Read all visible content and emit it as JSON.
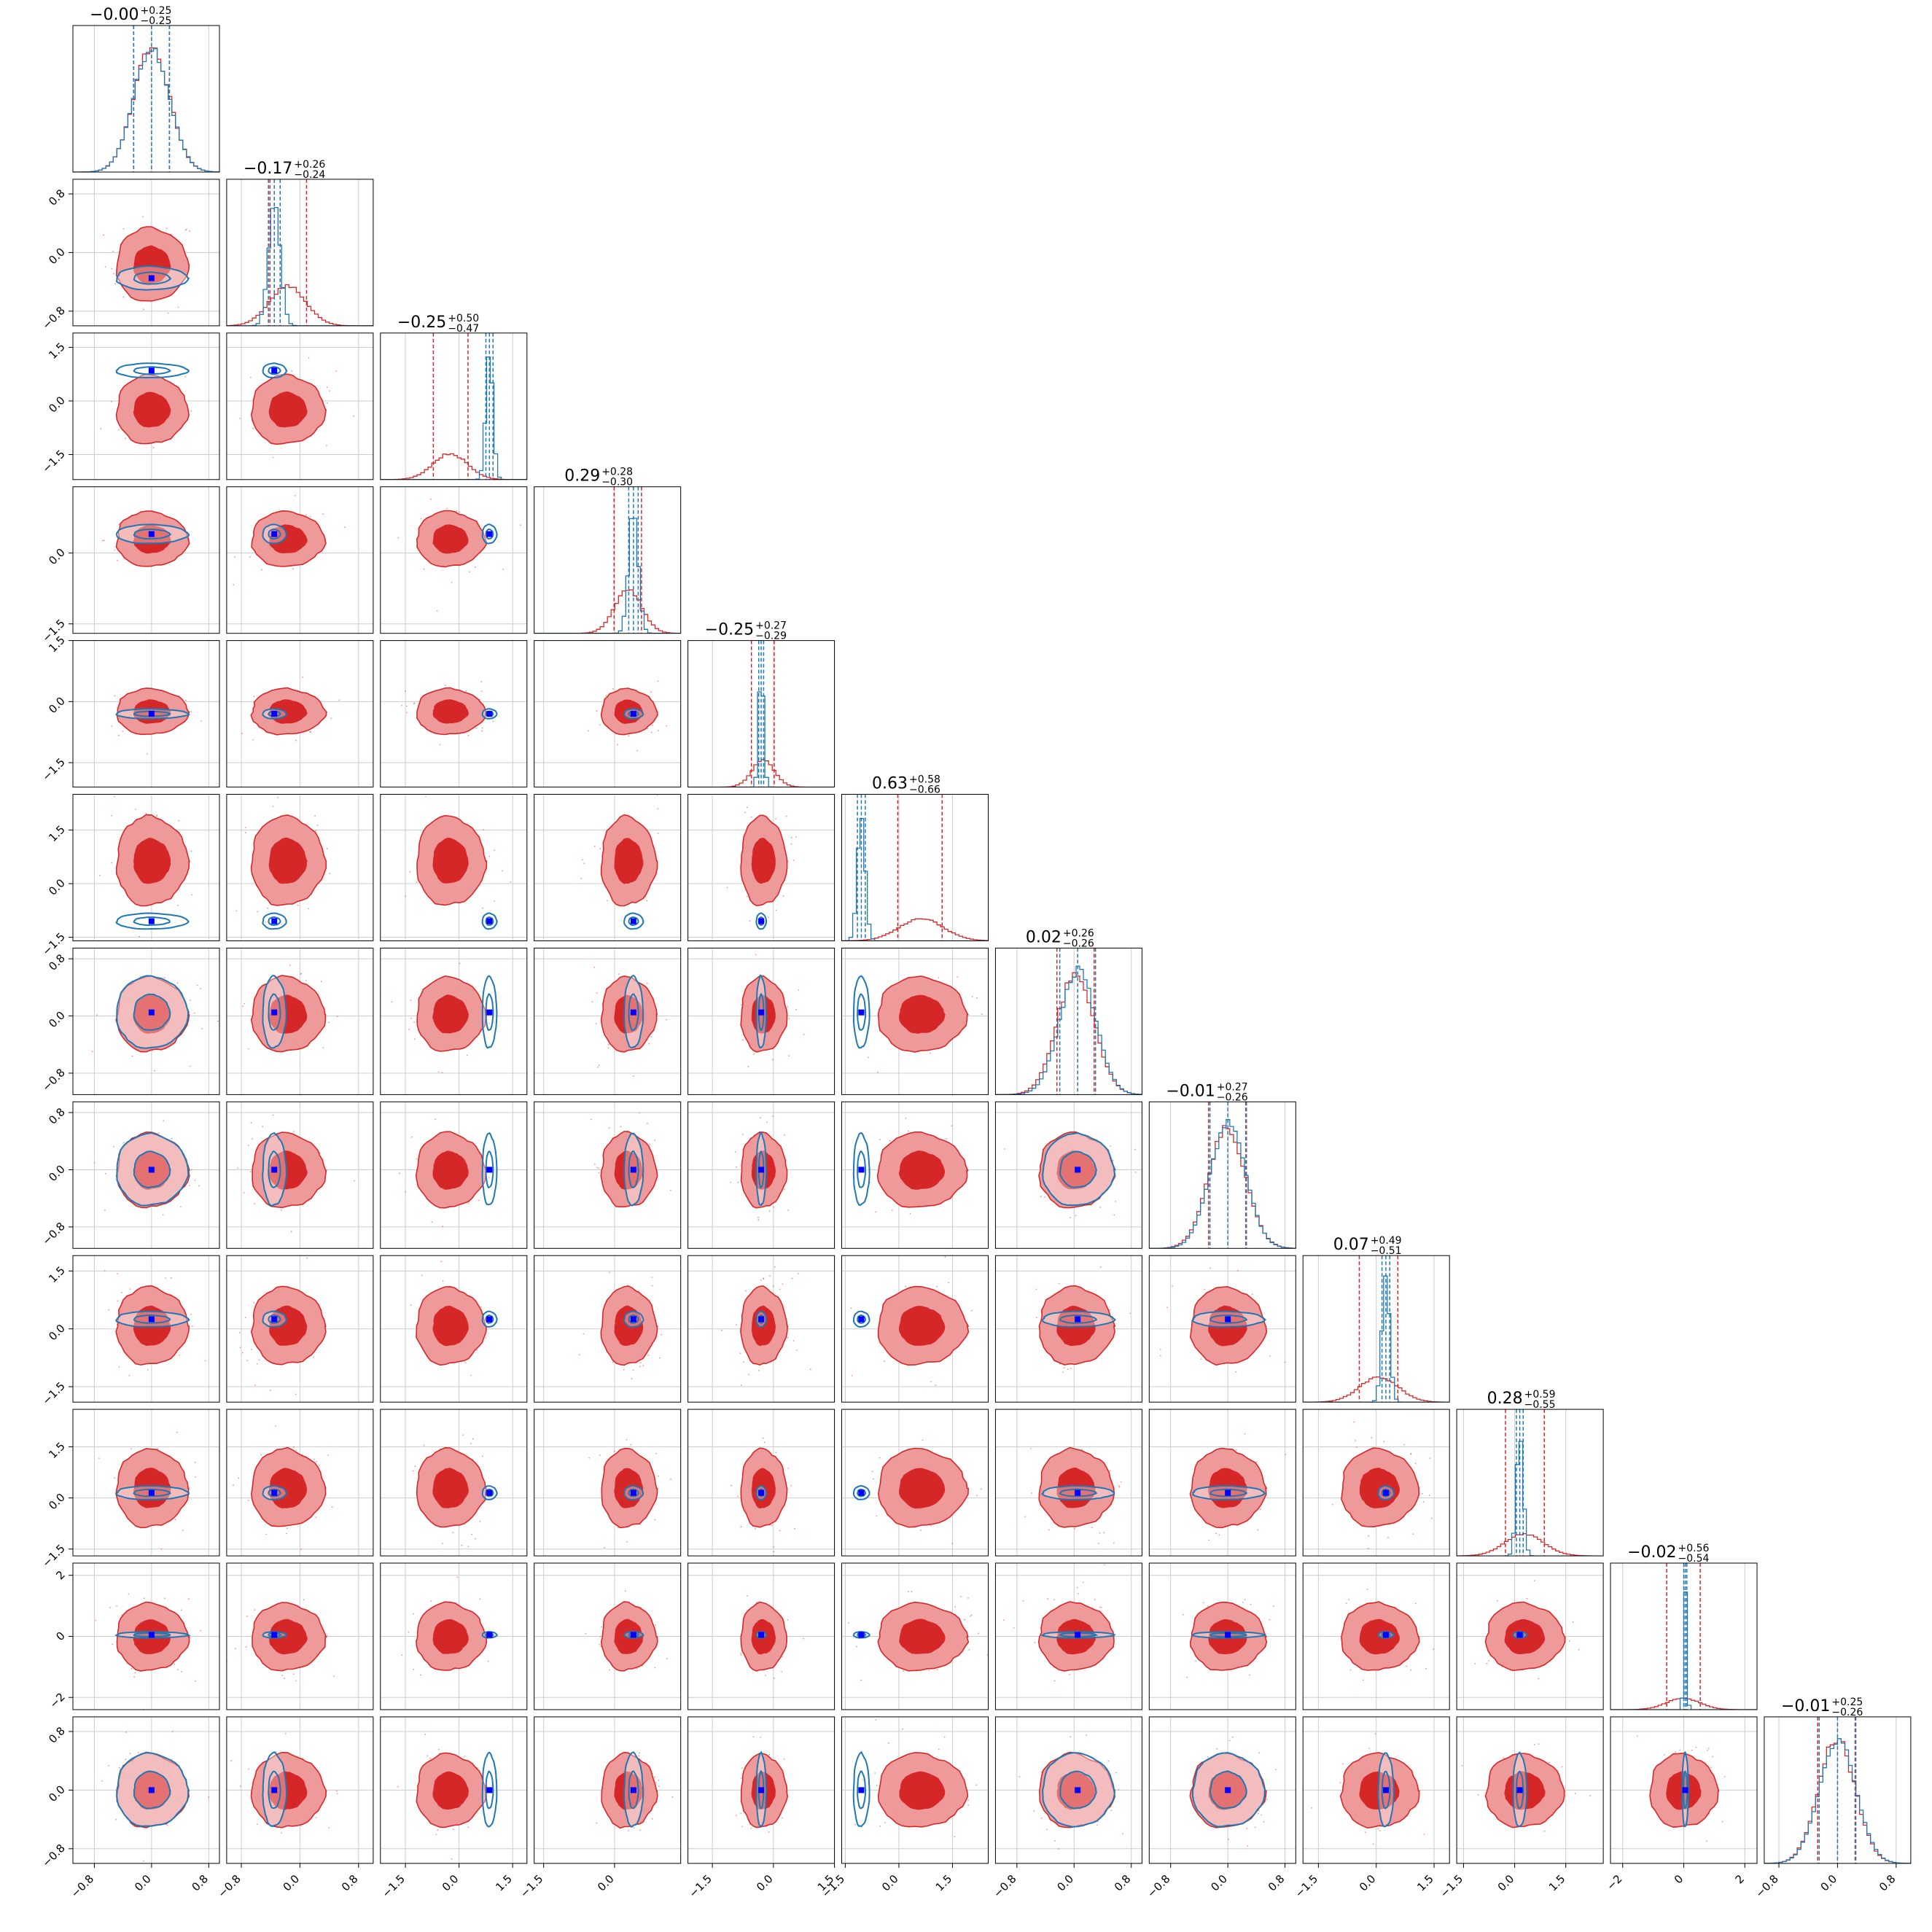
{
  "colors": {
    "posterior_a": "#d62728",
    "posterior_a_light": "#ee9a9a",
    "posterior_b": "#1f77b4",
    "truth_marker": "#0000ff",
    "grid": "#cccccc"
  },
  "chart_data": {
    "type": "scatter",
    "subtype": "corner-plot",
    "n_params": 12,
    "grid": true,
    "series": [
      {
        "color": "#d62728",
        "style": "filled contours with histograms",
        "medians": [
          -0.0,
          -0.17,
          -0.25,
          0.29,
          -0.25,
          0.63,
          0.02,
          -0.01,
          0.07,
          0.28,
          -0.02,
          -0.01
        ],
        "plus": [
          0.25,
          0.26,
          0.5,
          0.28,
          0.27,
          0.58,
          0.26,
          0.27,
          0.49,
          0.59,
          0.56,
          0.25
        ],
        "minus": [
          0.25,
          0.24,
          0.47,
          0.3,
          0.29,
          0.66,
          0.26,
          0.26,
          0.51,
          0.55,
          0.54,
          0.26
        ],
        "sigmas": [
          0.25,
          0.25,
          0.48,
          0.29,
          0.28,
          0.62,
          0.26,
          0.26,
          0.5,
          0.57,
          0.55,
          0.25
        ]
      },
      {
        "color": "#1f77b4",
        "style": "line contours with histograms",
        "medians": [
          0.0,
          -0.35,
          0.85,
          0.4,
          -0.3,
          -1.05,
          0.05,
          0.0,
          0.25,
          0.15,
          0.05,
          0.0
        ],
        "sigmas": [
          0.25,
          0.08,
          0.1,
          0.1,
          0.06,
          0.11,
          0.25,
          0.25,
          0.1,
          0.1,
          0.05,
          0.25
        ]
      }
    ],
    "truths": [
      0.0,
      -0.35,
      0.85,
      0.4,
      -0.3,
      -1.05,
      0.05,
      0.0,
      0.25,
      0.15,
      0.05,
      0.0
    ],
    "titles": [
      {
        "median": "−0.00",
        "plus": "+0.25",
        "minus": "−0.25"
      },
      {
        "median": "−0.17",
        "plus": "+0.26",
        "minus": "−0.24"
      },
      {
        "median": "−0.25",
        "plus": "+0.50",
        "minus": "−0.47"
      },
      {
        "median": "0.29",
        "plus": "+0.28",
        "minus": "−0.30"
      },
      {
        "median": "−0.25",
        "plus": "+0.27",
        "minus": "−0.29"
      },
      {
        "median": "0.63",
        "plus": "+0.58",
        "minus": "−0.66"
      },
      {
        "median": "0.02",
        "plus": "+0.26",
        "minus": "−0.26"
      },
      {
        "median": "−0.01",
        "plus": "+0.27",
        "minus": "−0.26"
      },
      {
        "median": "0.07",
        "plus": "+0.49",
        "minus": "−0.51"
      },
      {
        "median": "0.28",
        "plus": "+0.59",
        "minus": "−0.55"
      },
      {
        "median": "−0.02",
        "plus": "+0.56",
        "minus": "−0.54"
      },
      {
        "median": "−0.01",
        "plus": "+0.25",
        "minus": "−0.26"
      }
    ],
    "axis_ranges": [
      [
        -1.1,
        0.95
      ],
      [
        -1.0,
        1.0
      ],
      [
        -2.2,
        1.9
      ],
      [
        -1.7,
        1.4
      ],
      [
        -2.1,
        1.5
      ],
      [
        -1.6,
        2.5
      ],
      [
        -1.1,
        0.95
      ],
      [
        -1.1,
        0.95
      ],
      [
        -1.9,
        1.9
      ],
      [
        -1.7,
        2.6
      ],
      [
        -2.4,
        2.4
      ],
      [
        -1.0,
        1.0
      ]
    ],
    "tick_values": [
      [
        -0.8,
        0.0,
        0.8
      ],
      [
        -0.8,
        0.0,
        0.8
      ],
      [
        -1.5,
        0.0,
        1.5
      ],
      [
        -1.5,
        0.0
      ],
      [
        -1.5,
        0.0,
        1.5
      ],
      [
        -1.5,
        0.0,
        1.5
      ],
      [
        -0.8,
        0.0,
        0.8
      ],
      [
        -0.8,
        0.0,
        0.8
      ],
      [
        -1.5,
        0.0,
        1.5
      ],
      [
        -1.5,
        0.0,
        1.5
      ],
      [
        -2,
        0,
        2
      ],
      [
        -0.8,
        0.0,
        0.8
      ]
    ],
    "tick_labels": [
      [
        "−0.8",
        "0.0",
        "0.8"
      ],
      [
        "−0.8",
        "0.0",
        "0.8"
      ],
      [
        "−1.5",
        "0.0",
        "1.5"
      ],
      [
        "−1.5",
        "0.0"
      ],
      [
        "−1.5",
        "0.0",
        "1.5"
      ],
      [
        "−1.5",
        "0.0",
        "1.5"
      ],
      [
        "−0.8",
        "0.0",
        "0.8"
      ],
      [
        "−0.8",
        "0.0",
        "0.8"
      ],
      [
        "−1.5",
        "0.0",
        "1.5"
      ],
      [
        "−1.5",
        "0.0",
        "1.5"
      ],
      [
        "−2",
        "0",
        "2"
      ],
      [
        "−0.8",
        "0.0",
        "0.8"
      ]
    ]
  }
}
